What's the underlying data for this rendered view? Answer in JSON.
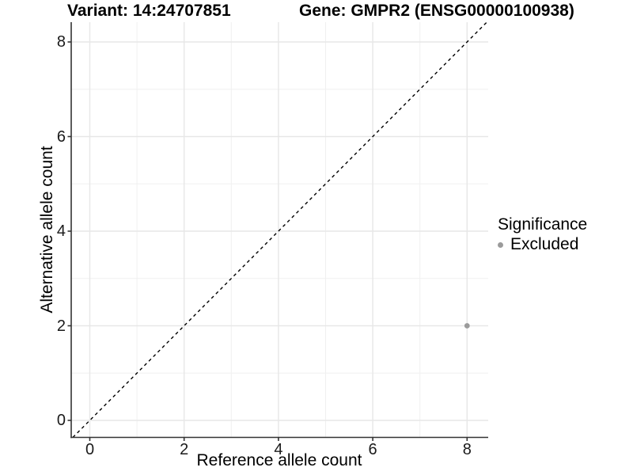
{
  "chart_data": {
    "type": "scatter",
    "titles": [
      "Variant: 14:24707851",
      "Gene: GMPR2 (ENSG00000100938)"
    ],
    "xlabel": "Reference allele count",
    "ylabel": "Alternative allele count",
    "xlim": [
      -0.42,
      8.45
    ],
    "ylim": [
      -0.36,
      8.45
    ],
    "x_ticks": [
      0,
      2,
      4,
      6,
      8
    ],
    "y_ticks": [
      0,
      2,
      4,
      6,
      8
    ],
    "x_minor": [
      1,
      3,
      5,
      7
    ],
    "y_minor": [
      1,
      3,
      5,
      7
    ],
    "grid": "major+minor",
    "identity_line": {
      "style": "dashed",
      "color": "#000000",
      "x1": -0.36,
      "y1": -0.36,
      "x2": 8.42,
      "y2": 8.42
    },
    "series": [
      {
        "name": "Excluded",
        "color": "#9b9b9b",
        "points": [
          {
            "x": 8,
            "y": 2
          }
        ]
      }
    ],
    "legend": {
      "position": "right",
      "title": "Significance",
      "entries": [
        {
          "label": "Excluded",
          "color": "#9b9b9b"
        }
      ]
    },
    "colors": {
      "background": "#ffffff",
      "grid_major": "#e7e7e7",
      "grid_minor": "#f0f0f0",
      "axis_line": "#333333",
      "point_excluded": "#9b9b9b"
    }
  }
}
